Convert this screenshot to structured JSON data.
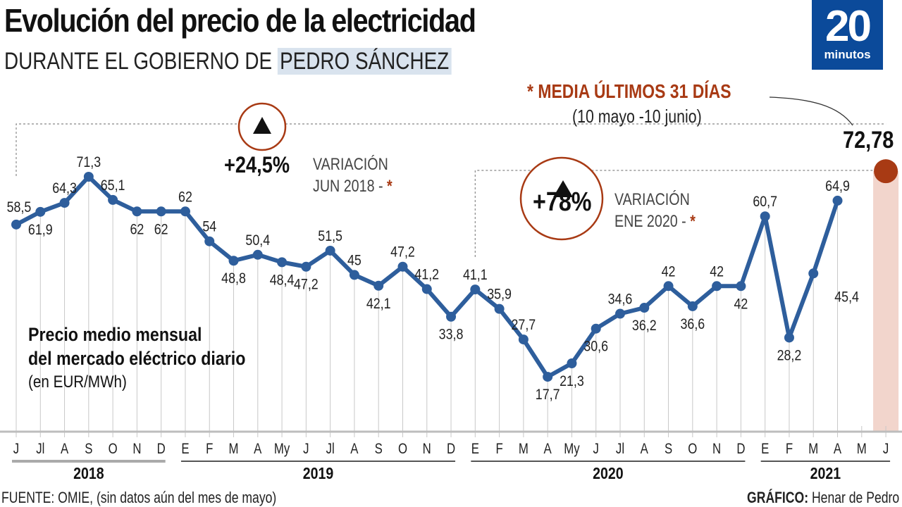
{
  "title": "Evolución del precio de la electricidad",
  "subtitle_prefix": "DURANTE EL GOBIERNO DE ",
  "subtitle_highlight": "PEDRO SÁNCHEZ",
  "logo": {
    "number": "20",
    "word": "minutos",
    "color": "#0b4a9a"
  },
  "colors": {
    "line": "#2e5e9c",
    "accent": "#a83a14",
    "shade": "#f2d5cc",
    "highlight": "#d9e3ee"
  },
  "legend": {
    "line1": "Precio medio mensual",
    "line2": "del mercado eléctrico diario",
    "unit": "(en EUR/MWh)"
  },
  "annotation_media": {
    "title": "* MEDIA ÚLTIMOS 31 DÍAS",
    "range": "(10 mayo -10 junio)",
    "value": "72,78"
  },
  "annotation_1": {
    "icon": "up-triangle-icon",
    "pct": "+24,5%",
    "label1": "VARIACIÓN",
    "label2": "JUN 2018 -",
    "star": "*"
  },
  "annotation_2": {
    "icon": "up-triangle-icon",
    "pct": "+78%",
    "label1": "VARIACIÓN",
    "label2": "ENE 2020 -",
    "star": "*"
  },
  "chart_data": {
    "type": "line",
    "ylabel": "Precio medio mensual del mercado eléctrico diario (en EUR/MWh)",
    "categories": [
      "J",
      "Jl",
      "A",
      "S",
      "O",
      "N",
      "D",
      "E",
      "F",
      "M",
      "A",
      "My",
      "J",
      "Jl",
      "A",
      "S",
      "O",
      "N",
      "D",
      "E",
      "F",
      "M",
      "A",
      "My",
      "J",
      "Jl",
      "A",
      "S",
      "O",
      "N",
      "D",
      "E",
      "F",
      "M",
      "A",
      "M",
      "J"
    ],
    "years": [
      {
        "label": "2018",
        "from": 0,
        "to": 6
      },
      {
        "label": "2019",
        "from": 7,
        "to": 18
      },
      {
        "label": "2020",
        "from": 19,
        "to": 30
      },
      {
        "label": "2021",
        "from": 31,
        "to": 36
      }
    ],
    "series": [
      {
        "values": [
          58.5,
          61.9,
          64.3,
          71.3,
          65.1,
          62,
          62,
          62,
          54,
          48.8,
          50.4,
          48.4,
          47.2,
          51.5,
          45,
          42.1,
          47.2,
          41.2,
          33.8,
          41.1,
          35.9,
          27.7,
          17.7,
          21.3,
          30.6,
          34.6,
          36.2,
          42,
          36.6,
          42,
          42,
          60.7,
          28.2,
          45.4,
          64.9,
          null,
          null
        ],
        "labels": [
          "58,5",
          "61,9",
          "64,3",
          "71,3",
          "65,1",
          "62",
          "62",
          "62",
          "54",
          "48,8",
          "50,4",
          "48,4",
          "47,2",
          "51,5",
          "45",
          "42,1",
          "47,2",
          "41,2",
          "33,8",
          "41,1",
          "35,9",
          "27,7",
          "17,7",
          "21,3",
          "30,6",
          "34,6",
          "36,2",
          "42",
          "36,6",
          "42",
          "42",
          "60,7",
          "28,2",
          "45,4",
          "64,9",
          "",
          ""
        ]
      }
    ],
    "highlight_point": {
      "category_index": 36,
      "value": 72.78,
      "label": "72,78"
    },
    "grid": true
  },
  "footer": {
    "source": "FUENTE: OMIE, (sin datos aún del mes de mayo)",
    "credit_bold": "GRÁFICO:",
    "credit": " Henar de Pedro"
  }
}
